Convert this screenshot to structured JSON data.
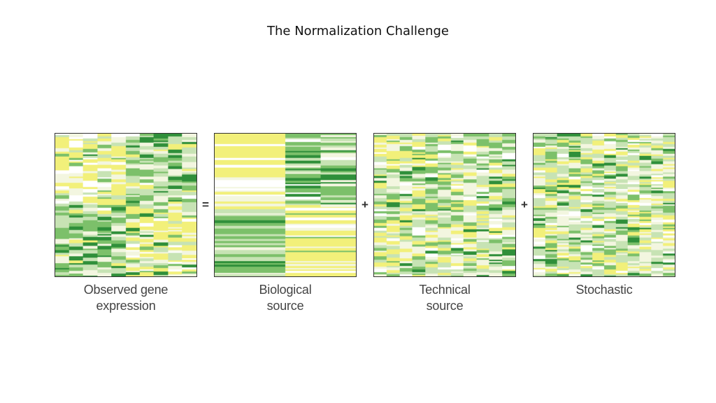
{
  "title": "The Normalization Challenge",
  "operators": {
    "equals": "=",
    "plus1": "+",
    "plus2": "+"
  },
  "panels": [
    {
      "caption": "Observed gene\nexpression"
    },
    {
      "caption": "Biological\nsource"
    },
    {
      "caption": "Technical\nsource"
    },
    {
      "caption": "Stochastic"
    }
  ],
  "colors": {
    "dark_green": "#2f8f3a",
    "mid_green": "#7cc06a",
    "light_green": "#c7e3b4",
    "pale": "#f3f6e0",
    "yellow": "#f2f07a",
    "white": "#ffffff"
  }
}
